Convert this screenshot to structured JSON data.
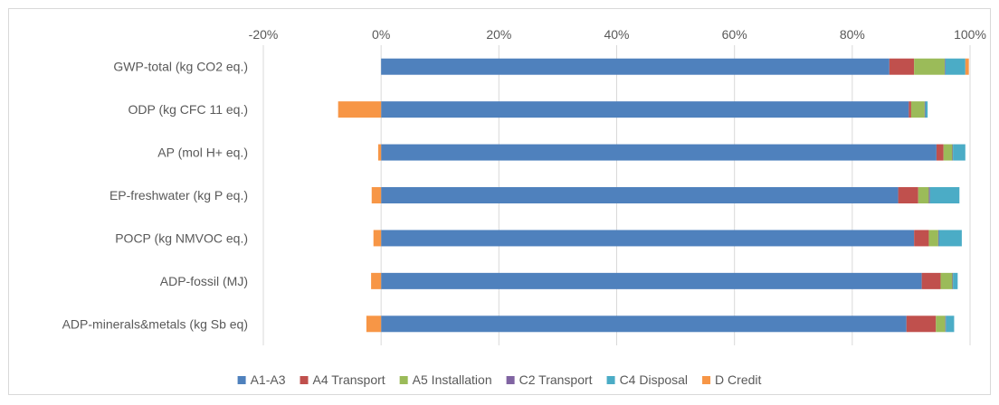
{
  "chart_data": {
    "type": "bar",
    "orientation": "horizontal",
    "stacked": true,
    "categories": [
      "GWP-total (kg CO2 eq.)",
      "ODP (kg CFC 11 eq.)",
      "AP (mol H+ eq.)",
      "EP-freshwater (kg P eq.)",
      "POCP (kg NMVOC eq.)",
      "ADP-fossil (MJ)",
      "ADP-minerals&metals (kg Sb eq)"
    ],
    "series": [
      {
        "name": "A1-A3",
        "color": "#4f81bd",
        "values": [
          86.3,
          89.6,
          94.3,
          87.8,
          90.5,
          91.8,
          89.2
        ]
      },
      {
        "name": "A4 Transport",
        "color": "#c0504d",
        "values": [
          4.2,
          0.4,
          1.2,
          3.4,
          2.5,
          3.2,
          5.0
        ]
      },
      {
        "name": "A5  Installation",
        "color": "#9bbb59",
        "values": [
          5.2,
          2.3,
          1.5,
          1.8,
          1.6,
          2.0,
          1.6
        ]
      },
      {
        "name": "C2  Transport",
        "color": "#8064a2",
        "values": [
          0.1,
          0.1,
          0.1,
          0.2,
          0.1,
          0.1,
          0.1
        ]
      },
      {
        "name": "C4  Disposal",
        "color": "#4bacc6",
        "values": [
          3.4,
          0.4,
          2.1,
          5.0,
          3.9,
          0.8,
          1.4
        ]
      },
      {
        "name": "D Credit",
        "color": "#f79646",
        "values": [
          0.6,
          -7.3,
          -0.5,
          -1.6,
          -1.3,
          -1.7,
          -2.5
        ]
      }
    ],
    "xlim": [
      -20,
      100
    ],
    "xticks": [
      "-20%",
      "0%",
      "20%",
      "40%",
      "60%",
      "80%",
      "100%"
    ],
    "title": "",
    "xlabel": "",
    "ylabel": "",
    "grid": true,
    "legend_position": "bottom"
  }
}
